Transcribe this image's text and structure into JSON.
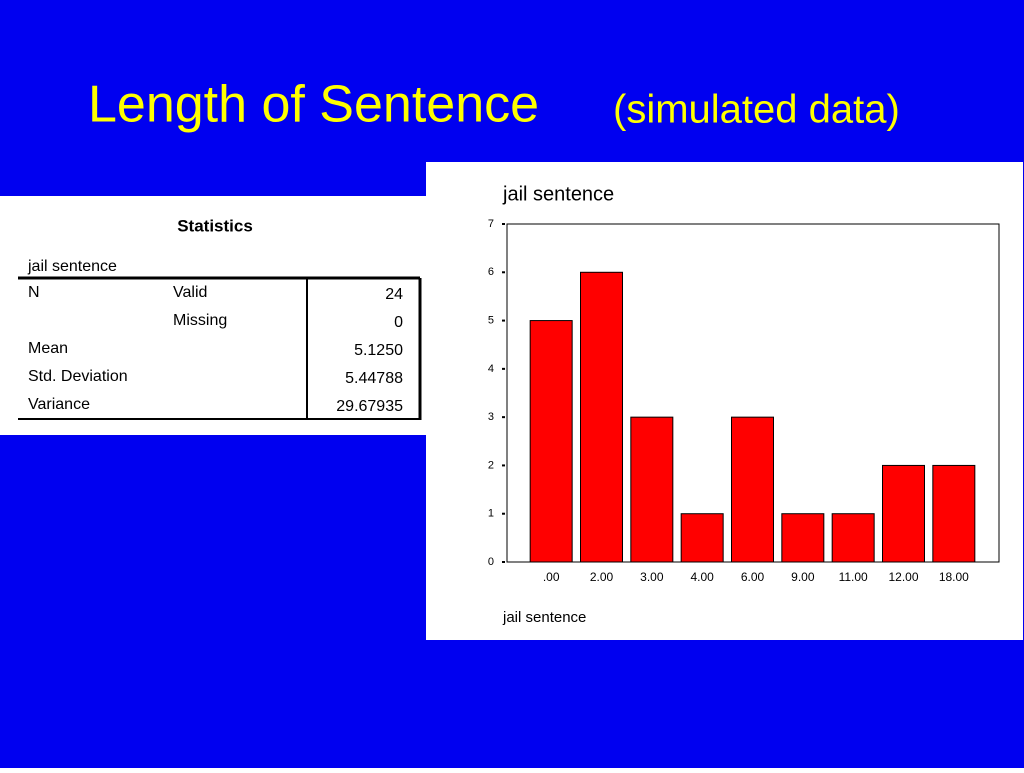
{
  "slide": {
    "title": "Length of Sentence",
    "subtitle": "(simulated data)"
  },
  "table": {
    "title": "Statistics",
    "variable": "jail sentence",
    "rows": [
      {
        "label": "N",
        "sublabel": "Valid",
        "value": "24"
      },
      {
        "sublabel": "Missing",
        "value": "0"
      },
      {
        "label": "Mean",
        "value": "5.1250"
      },
      {
        "label": "Std. Deviation",
        "value": "5.44788"
      },
      {
        "label": "Variance",
        "value": "29.67935"
      }
    ]
  },
  "chart_data": {
    "type": "bar",
    "title": "jail sentence",
    "x_label": "jail sentence",
    "categories": [
      ".00",
      "2.00",
      "3.00",
      "4.00",
      "6.00",
      "9.00",
      "11.00",
      "12.00",
      "18.00"
    ],
    "values": [
      5,
      6,
      3,
      1,
      3,
      1,
      1,
      2,
      2
    ],
    "color": "#ff0000",
    "ylim": [
      0,
      7
    ],
    "yticks": [
      0,
      1,
      2,
      3,
      4,
      5,
      6,
      7
    ]
  }
}
